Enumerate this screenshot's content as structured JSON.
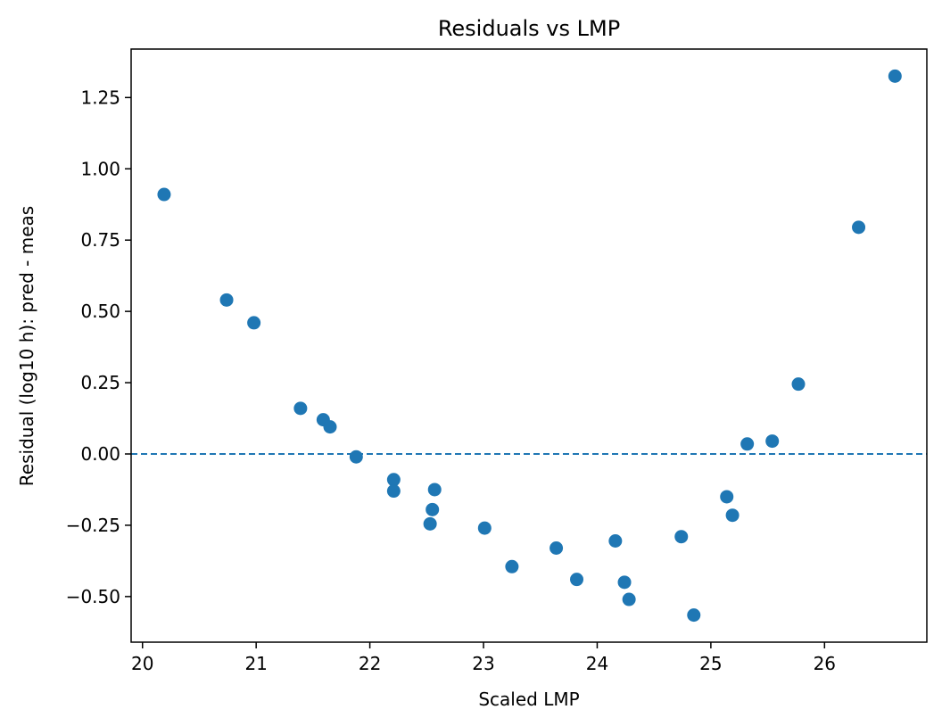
{
  "chart_data": {
    "type": "scatter",
    "title": "Residuals vs LMP",
    "xlabel": "Scaled LMP",
    "ylabel": "Residual (log10 h): pred - meas",
    "xlim": [
      19.9,
      26.9
    ],
    "ylim": [
      -0.66,
      1.42
    ],
    "xticks": [
      20,
      21,
      22,
      23,
      24,
      25,
      26
    ],
    "xtick_labels": [
      "20",
      "21",
      "22",
      "23",
      "24",
      "25",
      "26"
    ],
    "yticks": [
      -0.5,
      -0.25,
      0.0,
      0.25,
      0.5,
      0.75,
      1.0,
      1.25
    ],
    "ytick_labels": [
      "−0.50",
      "−0.25",
      "0.00",
      "0.25",
      "0.50",
      "0.75",
      "1.00",
      "1.25"
    ],
    "grid": false,
    "reference_line": {
      "y": 0.0,
      "style": "dashed"
    },
    "marker_color": "#1f77b4",
    "points": [
      {
        "x": 20.19,
        "y": 0.91
      },
      {
        "x": 20.74,
        "y": 0.54
      },
      {
        "x": 20.98,
        "y": 0.46
      },
      {
        "x": 21.39,
        "y": 0.16
      },
      {
        "x": 21.59,
        "y": 0.12
      },
      {
        "x": 21.65,
        "y": 0.095
      },
      {
        "x": 21.88,
        "y": -0.01
      },
      {
        "x": 22.21,
        "y": -0.09
      },
      {
        "x": 22.21,
        "y": -0.13
      },
      {
        "x": 22.55,
        "y": -0.195
      },
      {
        "x": 22.53,
        "y": -0.245
      },
      {
        "x": 22.57,
        "y": -0.125
      },
      {
        "x": 23.01,
        "y": -0.26
      },
      {
        "x": 23.25,
        "y": -0.395
      },
      {
        "x": 23.64,
        "y": -0.33
      },
      {
        "x": 23.82,
        "y": -0.44
      },
      {
        "x": 24.16,
        "y": -0.305
      },
      {
        "x": 24.24,
        "y": -0.45
      },
      {
        "x": 24.28,
        "y": -0.51
      },
      {
        "x": 24.74,
        "y": -0.29
      },
      {
        "x": 24.85,
        "y": -0.565
      },
      {
        "x": 25.14,
        "y": -0.15
      },
      {
        "x": 25.19,
        "y": -0.215
      },
      {
        "x": 25.32,
        "y": 0.035
      },
      {
        "x": 25.54,
        "y": 0.045
      },
      {
        "x": 25.77,
        "y": 0.245
      },
      {
        "x": 26.3,
        "y": 0.795
      },
      {
        "x": 26.62,
        "y": 1.325
      }
    ]
  }
}
